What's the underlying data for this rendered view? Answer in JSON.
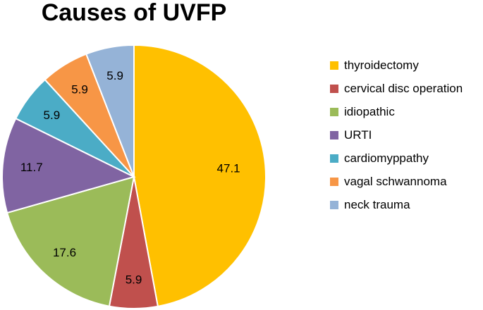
{
  "chart_data": {
    "type": "pie",
    "title": "Causes of UVFP",
    "categories": [
      "thyroidectomy",
      "cervical disc operation",
      "idiopathic",
      "URTI",
      "cardiomyppathy",
      "vagal schwannoma",
      "neck trauma"
    ],
    "values": [
      47.1,
      5.9,
      17.6,
      11.7,
      5.9,
      5.9,
      5.9
    ],
    "colors": [
      "#FFC000",
      "#C0504D",
      "#9BBB59",
      "#8064A2",
      "#4BACC6",
      "#F79646",
      "#95B3D7"
    ],
    "data_labels": [
      "47.1",
      "5.9",
      "17.6",
      "11.7",
      "5.9",
      "5.9",
      "5.9"
    ],
    "legend_position": "right",
    "start_angle": "top, clockwise"
  }
}
